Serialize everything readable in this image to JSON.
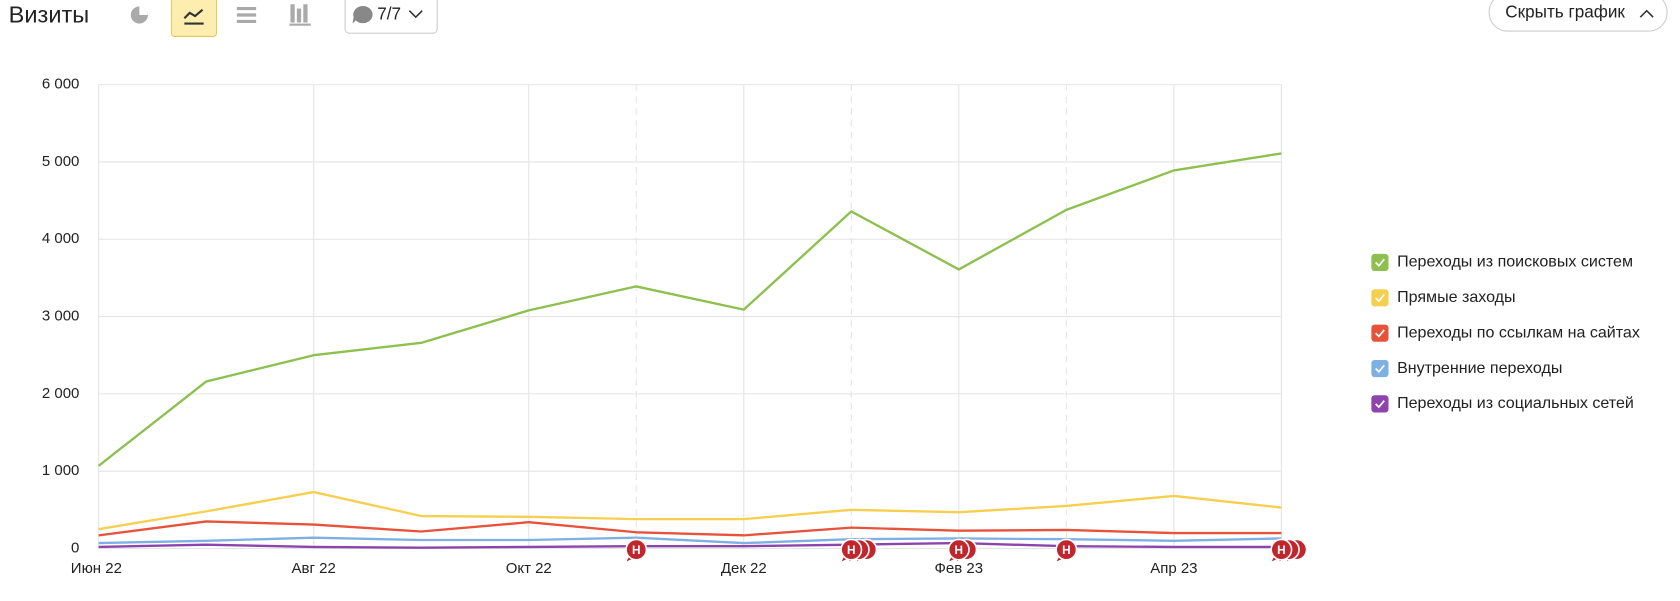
{
  "toolbar": {
    "title": "Визиты",
    "comments_filter": "7/7",
    "hide_button": "Скрыть график"
  },
  "annotation_marker": "Н",
  "chart_data": {
    "type": "line",
    "categories": [
      "Июн 22",
      null,
      "Авг 22",
      null,
      "Окт 22",
      null,
      "Дек 22",
      null,
      "Фев 23",
      null,
      "Апр 23",
      null
    ],
    "series": [
      {
        "name": "Переходы из поисковых систем",
        "color": "#8dc04f",
        "values": [
          1070,
          2160,
          2500,
          2660,
          3080,
          3390,
          3090,
          4360,
          3610,
          4380,
          4890,
          5110
        ]
      },
      {
        "name": "Прямые заходы",
        "color": "#f6cf4f",
        "values": [
          250,
          480,
          730,
          420,
          410,
          380,
          380,
          500,
          470,
          550,
          680,
          530
        ]
      },
      {
        "name": "Переходы по ссылкам на сайтах",
        "color": "#e6533a",
        "values": [
          170,
          350,
          310,
          220,
          340,
          210,
          170,
          270,
          230,
          240,
          200,
          200
        ]
      },
      {
        "name": "Внутренние переходы",
        "color": "#7fb0e3",
        "values": [
          70,
          100,
          140,
          110,
          110,
          140,
          70,
          120,
          130,
          120,
          100,
          130
        ]
      },
      {
        "name": "Переходы из социальных сетей",
        "color": "#8e44ad",
        "values": [
          20,
          50,
          20,
          10,
          20,
          30,
          30,
          50,
          70,
          30,
          20,
          20
        ]
      }
    ],
    "ylim": [
      0,
      6000
    ],
    "yticks": [
      0,
      {
        "value": 1000,
        "label": "1 000"
      },
      {
        "value": 2000,
        "label": "2 000"
      },
      {
        "value": 3000,
        "label": "3 000"
      },
      {
        "value": 4000,
        "label": "4 000"
      },
      {
        "value": 5000,
        "label": "5 000"
      },
      {
        "value": 6000,
        "label": "6 000"
      }
    ],
    "grid": true,
    "legend": "right"
  }
}
